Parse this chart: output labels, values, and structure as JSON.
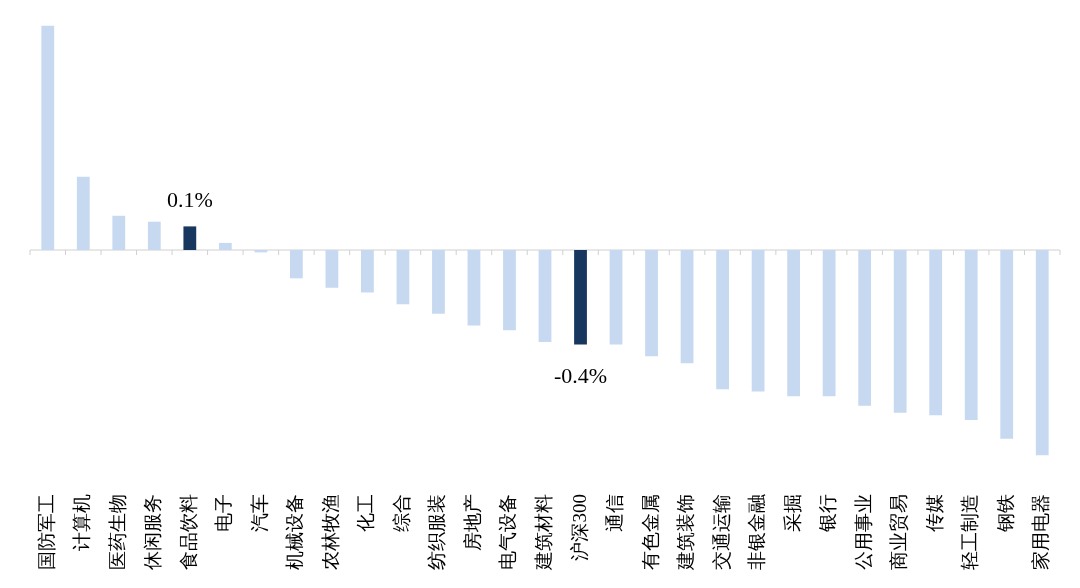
{
  "chart_data": {
    "type": "bar",
    "categories": [
      "国防军工",
      "计算机",
      "医药生物",
      "休闲服务",
      "食品饮料",
      "电子",
      "汽车",
      "机械设备",
      "农林牧渔",
      "化工",
      "综合",
      "纺织服装",
      "房地产",
      "电气设备",
      "建筑材料",
      "沪深300",
      "通信",
      "有色金属",
      "建筑装饰",
      "交通运输",
      "非银金融",
      "采掘",
      "银行",
      "公用事业",
      "商业贸易",
      "传媒",
      "轻工制造",
      "钢铁",
      "家用电器"
    ],
    "values": [
      0.95,
      0.31,
      0.145,
      0.12,
      0.1,
      0.03,
      -0.01,
      -0.12,
      -0.16,
      -0.18,
      -0.23,
      -0.27,
      -0.32,
      -0.34,
      -0.39,
      -0.4,
      -0.4,
      -0.45,
      -0.48,
      -0.59,
      -0.6,
      -0.62,
      -0.62,
      -0.66,
      -0.69,
      -0.7,
      -0.72,
      -0.8,
      -0.87
    ],
    "colors": [
      "#c6d9f1",
      "#c6d9f1",
      "#c6d9f1",
      "#c6d9f1",
      "#17375e",
      "#c6d9f1",
      "#c6d9f1",
      "#c6d9f1",
      "#c6d9f1",
      "#c6d9f1",
      "#c6d9f1",
      "#c6d9f1",
      "#c6d9f1",
      "#c6d9f1",
      "#c6d9f1",
      "#17375e",
      "#c6d9f1",
      "#c6d9f1",
      "#c6d9f1",
      "#c6d9f1",
      "#c6d9f1",
      "#c6d9f1",
      "#c6d9f1",
      "#c6d9f1",
      "#c6d9f1",
      "#c6d9f1",
      "#c6d9f1",
      "#c6d9f1",
      "#c6d9f1"
    ],
    "value_labels": [
      null,
      null,
      null,
      null,
      "0.1%",
      null,
      null,
      null,
      null,
      null,
      null,
      null,
      null,
      null,
      null,
      "-0.4%",
      null,
      null,
      null,
      null,
      null,
      null,
      null,
      null,
      null,
      null,
      null,
      null,
      null
    ],
    "grid": false,
    "legend": false
  }
}
